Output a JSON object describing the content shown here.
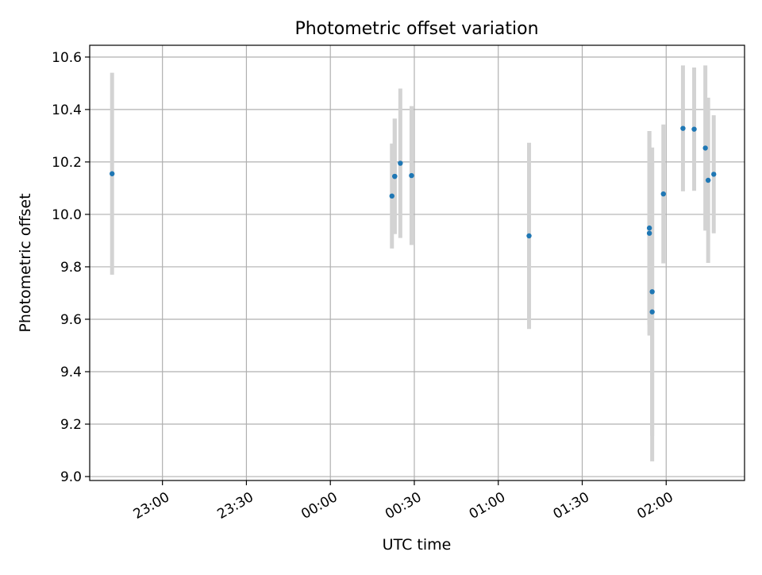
{
  "chart_data": {
    "type": "scatter",
    "title": "Photometric offset variation",
    "xlabel": "UTC time",
    "ylabel": "Photometric offset",
    "x_tick_labels": [
      "23:00",
      "23:30",
      "00:00",
      "00:30",
      "01:00",
      "01:30",
      "02:00"
    ],
    "y_tick_labels": [
      "9.0",
      "9.2",
      "9.4",
      "9.6",
      "9.8",
      "10.0",
      "10.2",
      "10.4",
      "10.6"
    ],
    "xlim": [
      "22:34",
      "02:28"
    ],
    "ylim": [
      8.985,
      10.645
    ],
    "grid": true,
    "colors": {
      "points": "#1f77b4",
      "errorbars": "#d3d3d3",
      "grid": "#b0b0b0"
    },
    "points": [
      {
        "time": "22:42",
        "y": 10.155,
        "err": 0.385
      },
      {
        "time": "00:22",
        "y": 10.07,
        "err": 0.2
      },
      {
        "time": "00:23",
        "y": 10.145,
        "err": 0.22
      },
      {
        "time": "00:23",
        "y": 10.145,
        "err": 0.22
      },
      {
        "time": "00:25",
        "y": 10.195,
        "err": 0.285
      },
      {
        "time": "00:29",
        "y": 10.148,
        "err": 0.265
      },
      {
        "time": "01:11",
        "y": 9.918,
        "err": 0.355
      },
      {
        "time": "01:54",
        "y": 9.948,
        "err": 0.37
      },
      {
        "time": "01:54",
        "y": 9.928,
        "err": 0.39
      },
      {
        "time": "01:55",
        "y": 9.705,
        "err": 0.55
      },
      {
        "time": "01:55",
        "y": 9.628,
        "err": 0.57
      },
      {
        "time": "01:59",
        "y": 10.078,
        "err": 0.265
      },
      {
        "time": "02:06",
        "y": 10.328,
        "err": 0.24
      },
      {
        "time": "02:10",
        "y": 10.325,
        "err": 0.235
      },
      {
        "time": "02:14",
        "y": 10.253,
        "err": 0.315
      },
      {
        "time": "02:15",
        "y": 10.13,
        "err": 0.315
      },
      {
        "time": "02:17",
        "y": 10.153,
        "err": 0.225
      }
    ]
  }
}
